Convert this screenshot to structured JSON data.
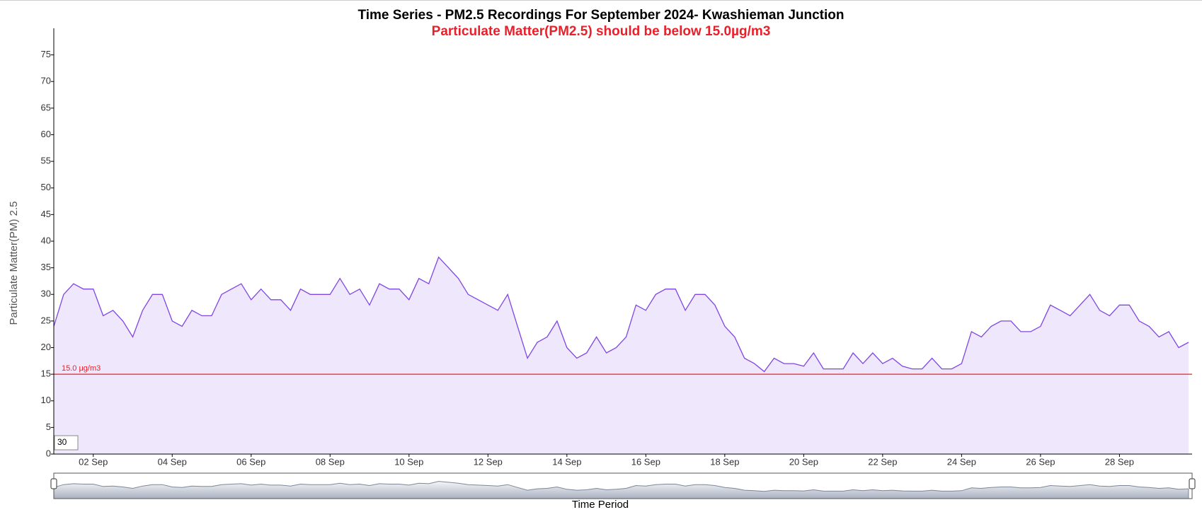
{
  "chart_data": {
    "type": "line",
    "title": "Time Series - PM2.5 Recordings For September 2024- Kwashieman Junction",
    "subtitle": "Particulate Matter(PM2.5) should be below 15.0µg/m3",
    "x_label": "Time Period",
    "y_label": "Particulate Matter(PM) 2.5",
    "x": [
      1,
      1.25,
      1.5,
      1.75,
      2,
      2.25,
      2.5,
      2.75,
      3,
      3.25,
      3.5,
      3.75,
      4,
      4.25,
      4.5,
      4.75,
      5,
      5.25,
      5.5,
      5.75,
      6,
      6.25,
      6.5,
      6.75,
      7,
      7.25,
      7.5,
      7.75,
      8,
      8.25,
      8.5,
      8.75,
      9,
      9.25,
      9.5,
      9.75,
      10,
      10.25,
      10.5,
      10.75,
      11,
      11.25,
      11.5,
      11.75,
      12,
      12.25,
      12.5,
      12.75,
      13,
      13.25,
      13.5,
      13.75,
      14,
      14.25,
      14.5,
      14.75,
      15,
      15.25,
      15.5,
      15.75,
      16,
      16.25,
      16.5,
      16.75,
      17,
      17.25,
      17.5,
      17.75,
      18,
      18.25,
      18.5,
      18.75,
      19,
      19.25,
      19.5,
      19.75,
      20,
      20.25,
      20.5,
      20.75,
      21,
      21.25,
      21.5,
      21.75,
      22,
      22.25,
      22.5,
      22.75,
      23,
      23.25,
      23.5,
      23.75,
      24,
      24.25,
      24.5,
      24.75,
      25,
      25.25,
      25.5,
      25.75,
      26,
      26.25,
      26.5,
      26.75,
      27,
      27.25,
      27.5,
      27.75,
      28,
      28.25,
      28.5,
      28.75,
      29,
      29.25,
      29.5,
      29.75
    ],
    "series": [
      {
        "color": "#7f45e6",
        "fill": "#efe8fd",
        "values": [
          24,
          30,
          32,
          31,
          31,
          26,
          27,
          25,
          22,
          27,
          30,
          30,
          25,
          24,
          27,
          26,
          26,
          30,
          31,
          32,
          29,
          31,
          29,
          29,
          27,
          31,
          30,
          30,
          30,
          33,
          30,
          31,
          28,
          32,
          31,
          31,
          29,
          33,
          32,
          37,
          35,
          33,
          30,
          29,
          28,
          27,
          30,
          24,
          18,
          21,
          22,
          25,
          20,
          18,
          19,
          22,
          19,
          20,
          22,
          28,
          27,
          30,
          31,
          31,
          27,
          30,
          30,
          28,
          24,
          22,
          18,
          17,
          15.5,
          18,
          17,
          17,
          16.5,
          19,
          16,
          16,
          16,
          19,
          17,
          19,
          17,
          18,
          16.5,
          16,
          16,
          18,
          16,
          16,
          17,
          23,
          22,
          24,
          25,
          25,
          23,
          23,
          24,
          28,
          27,
          26,
          28,
          30,
          27,
          26,
          28,
          28,
          25,
          24,
          22,
          23,
          20,
          21
        ]
      }
    ],
    "xlim": [
      1,
      29.84
    ],
    "xticks": [
      {
        "value": 2,
        "label": "02 Sep"
      },
      {
        "value": 4,
        "label": "04 Sep"
      },
      {
        "value": 6,
        "label": "06 Sep"
      },
      {
        "value": 8,
        "label": "08 Sep"
      },
      {
        "value": 10,
        "label": "10 Sep"
      },
      {
        "value": 12,
        "label": "12 Sep"
      },
      {
        "value": 14,
        "label": "14 Sep"
      },
      {
        "value": 16,
        "label": "16 Sep"
      },
      {
        "value": 18,
        "label": "18 Sep"
      },
      {
        "value": 20,
        "label": "20 Sep"
      },
      {
        "value": 22,
        "label": "22 Sep"
      },
      {
        "value": 24,
        "label": "24 Sep"
      },
      {
        "value": 26,
        "label": "26 Sep"
      },
      {
        "value": 28,
        "label": "28 Sep"
      }
    ],
    "ylim": [
      0,
      80
    ],
    "yticks": [
      0,
      5,
      10,
      15,
      20,
      25,
      30,
      35,
      40,
      45,
      50,
      55,
      60,
      65,
      70,
      75
    ],
    "threshold": {
      "value": 15,
      "label": "15.0 μg/m3",
      "color": "#e8202a"
    },
    "roll_period": 30
  }
}
